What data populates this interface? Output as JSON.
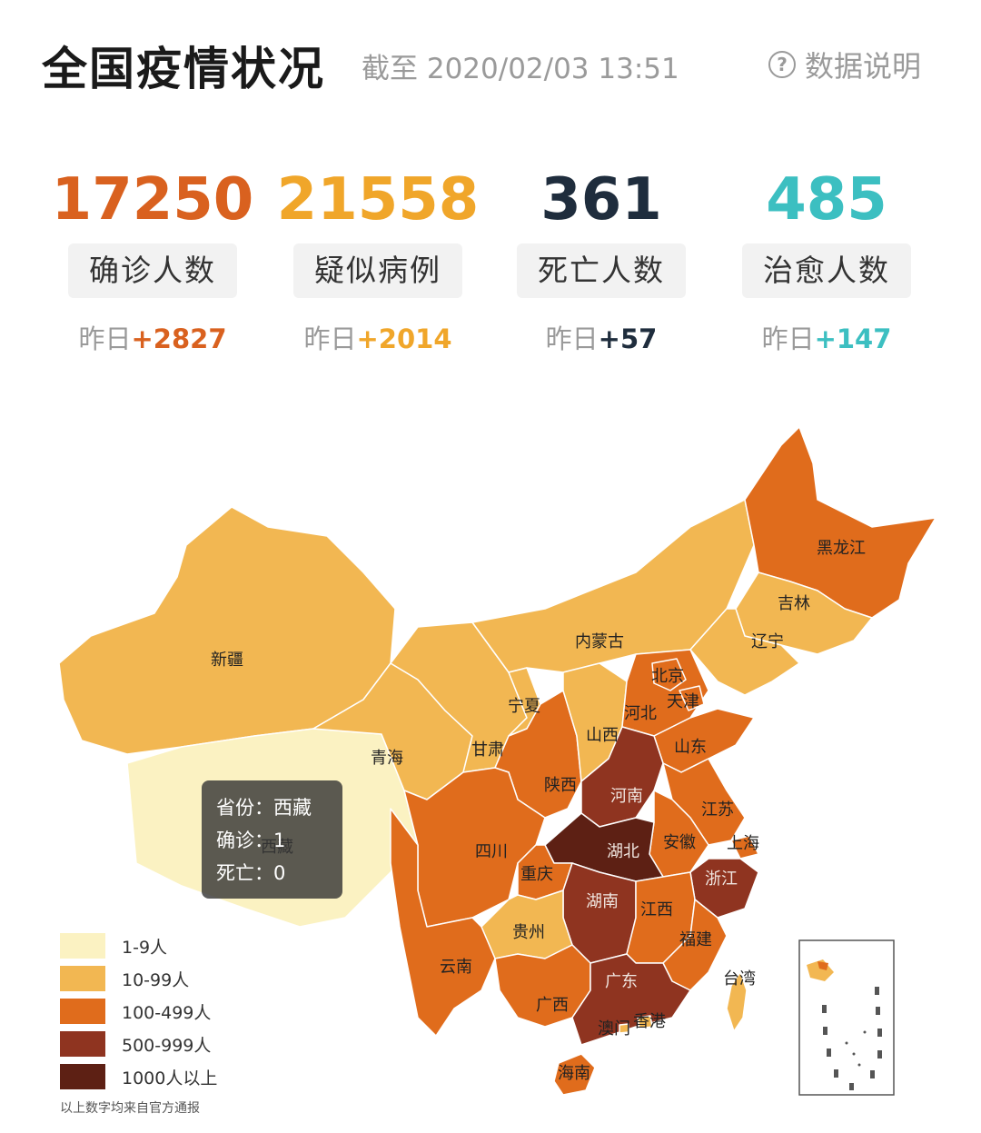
{
  "header": {
    "title": "全国疫情状况",
    "as_of": "截至 2020/02/03 13:51",
    "help_label": "数据说明",
    "help_icon": "question-circle-icon"
  },
  "stats": [
    {
      "value": "17250",
      "label": "确诊人数",
      "delta_prefix": "昨日",
      "delta": "+2827",
      "color": "#d9611f"
    },
    {
      "value": "21558",
      "label": "疑似病例",
      "delta_prefix": "昨日",
      "delta": "+2014",
      "color": "#f0a62a"
    },
    {
      "value": "361",
      "label": "死亡人数",
      "delta_prefix": "昨日",
      "delta": "+57",
      "color": "#1f2d3d"
    },
    {
      "value": "485",
      "label": "治愈人数",
      "delta_prefix": "昨日",
      "delta": "+147",
      "color": "#3cbfc1"
    }
  ],
  "map": {
    "colors": {
      "tier1": "#fbf2c2",
      "tier2": "#f2b752",
      "tier3": "#e06c1c",
      "tier4": "#8f3420",
      "tier5": "#5d2014"
    },
    "provinces": [
      {
        "name": "新疆",
        "tier": 2
      },
      {
        "name": "西藏",
        "tier": 1
      },
      {
        "name": "青海",
        "tier": 2
      },
      {
        "name": "甘肃",
        "tier": 2
      },
      {
        "name": "内蒙古",
        "tier": 2
      },
      {
        "name": "宁夏",
        "tier": 2
      },
      {
        "name": "陕西",
        "tier": 3
      },
      {
        "name": "山西",
        "tier": 2
      },
      {
        "name": "河北",
        "tier": 3
      },
      {
        "name": "北京",
        "tier": 3
      },
      {
        "name": "天津",
        "tier": 3
      },
      {
        "name": "黑龙江",
        "tier": 3
      },
      {
        "name": "吉林",
        "tier": 2
      },
      {
        "name": "辽宁",
        "tier": 2
      },
      {
        "name": "山东",
        "tier": 3
      },
      {
        "name": "河南",
        "tier": 4
      },
      {
        "name": "江苏",
        "tier": 3
      },
      {
        "name": "安徽",
        "tier": 3
      },
      {
        "name": "上海",
        "tier": 3
      },
      {
        "name": "浙江",
        "tier": 4
      },
      {
        "name": "湖北",
        "tier": 5
      },
      {
        "name": "四川",
        "tier": 3
      },
      {
        "name": "重庆",
        "tier": 3
      },
      {
        "name": "湖南",
        "tier": 4
      },
      {
        "name": "江西",
        "tier": 3
      },
      {
        "name": "贵州",
        "tier": 2
      },
      {
        "name": "云南",
        "tier": 3
      },
      {
        "name": "福建",
        "tier": 3
      },
      {
        "name": "广西",
        "tier": 3
      },
      {
        "name": "广东",
        "tier": 4
      },
      {
        "name": "台湾",
        "tier": 2
      },
      {
        "name": "香港",
        "tier": 2
      },
      {
        "name": "澳门",
        "tier": 2
      },
      {
        "name": "海南",
        "tier": 3
      }
    ]
  },
  "tooltip": {
    "province_label": "省份：",
    "province": "西藏",
    "confirmed_label": "确诊：",
    "confirmed": "1",
    "death_label": "死亡：",
    "death": "0"
  },
  "legend": [
    {
      "label": "1-9人",
      "color": "#fbf2c2"
    },
    {
      "label": "10-99人",
      "color": "#f2b752"
    },
    {
      "label": "100-499人",
      "color": "#e06c1c"
    },
    {
      "label": "500-999人",
      "color": "#8f3420"
    },
    {
      "label": "1000人以上",
      "color": "#5d2014"
    }
  ],
  "source_note": "以上数字均来自官方通报"
}
